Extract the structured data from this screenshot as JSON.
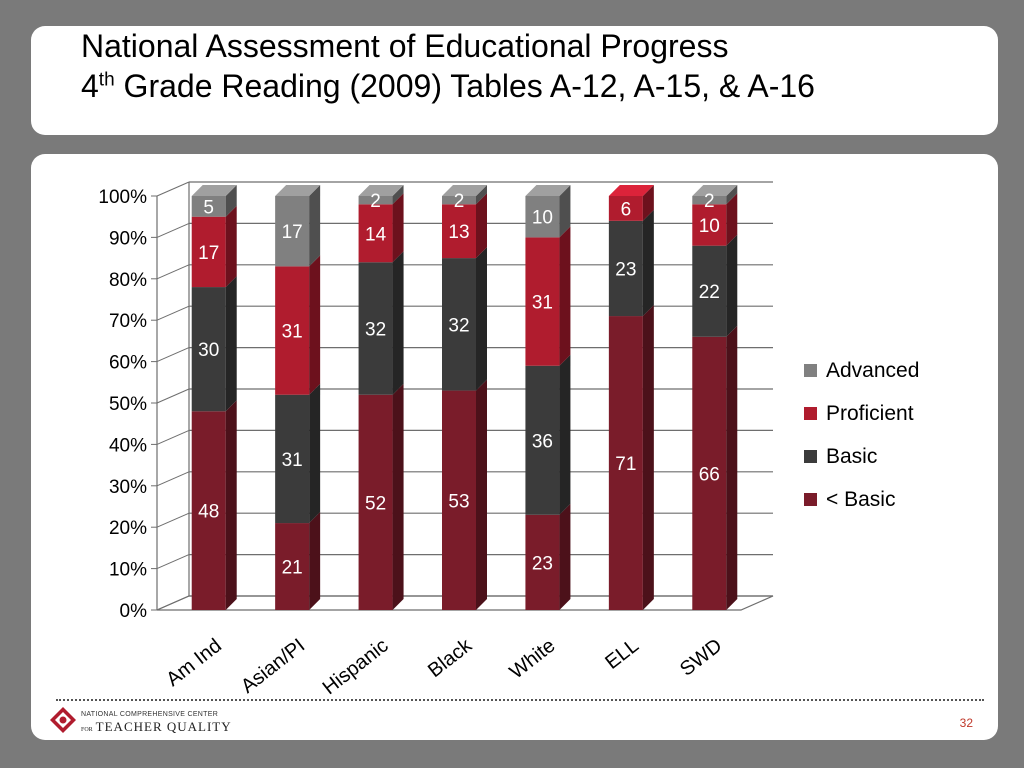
{
  "slide": {
    "title_line1": "National Assessment of Educational Progress",
    "title_line2_num": "4",
    "title_line2_sup": "th",
    "title_line2_rest": " Grade Reading (2009) Tables A-12, A-15, & A-16",
    "page_number": "32",
    "logo_line1": "NATIONAL COMPREHENSIVE CENTER",
    "logo_for": "FOR",
    "logo_line2": "TEACHER QUALITY"
  },
  "colors": {
    "advanced": "#808080",
    "proficient": "#b01c2e",
    "basic": "#3b3b3b",
    "below_basic": "#7a1c2a",
    "grid": "#6e6e6e",
    "label_dark": "#ffffff",
    "label_light": "#ffffff"
  },
  "chart_data": {
    "type": "bar",
    "stacked": true,
    "percent_stacked": true,
    "three_d": true,
    "title": "",
    "xlabel": "",
    "ylabel": "",
    "ylim": [
      0,
      100
    ],
    "yticks": [
      "0%",
      "10%",
      "20%",
      "30%",
      "40%",
      "50%",
      "60%",
      "70%",
      "80%",
      "90%",
      "100%"
    ],
    "categories": [
      "Am Ind",
      "Asian/PI",
      "Hispanic",
      "Black",
      "White",
      "ELL",
      "SWD"
    ],
    "series": [
      {
        "name": "< Basic",
        "key": "below_basic",
        "values": [
          48,
          21,
          52,
          53,
          23,
          71,
          66
        ]
      },
      {
        "name": "Basic",
        "key": "basic",
        "values": [
          30,
          31,
          32,
          32,
          36,
          23,
          22
        ]
      },
      {
        "name": "Proficient",
        "key": "proficient",
        "values": [
          17,
          31,
          14,
          13,
          31,
          6,
          10
        ]
      },
      {
        "name": "Advanced",
        "key": "advanced",
        "values": [
          5,
          17,
          2,
          2,
          10,
          0,
          2
        ]
      }
    ],
    "legend_order": [
      "Advanced",
      "Proficient",
      "Basic",
      "< Basic"
    ],
    "legend_position": "right"
  }
}
